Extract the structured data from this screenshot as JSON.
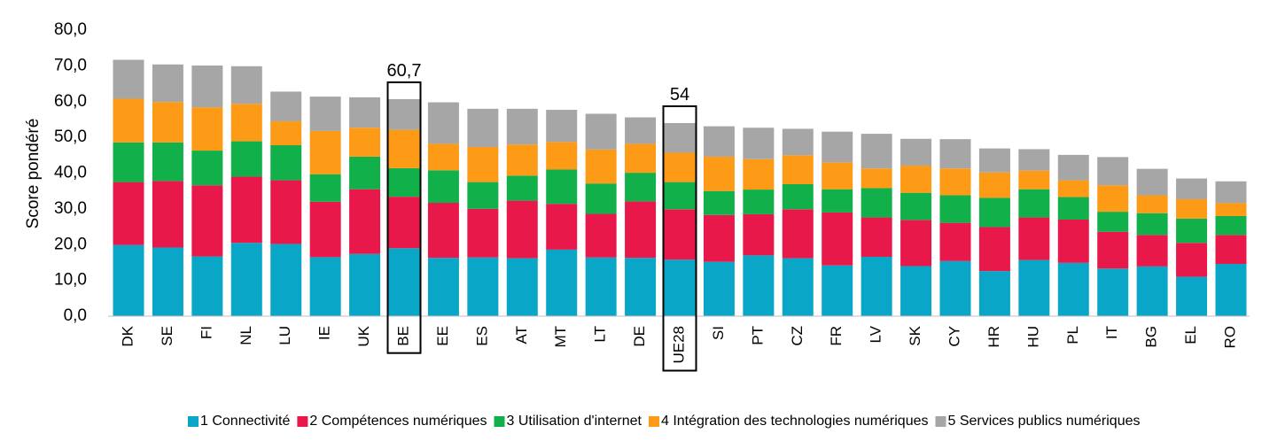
{
  "chart_data": {
    "type": "stacked_bar",
    "y_label": "Score pondéré",
    "categories": [
      "DK",
      "SE",
      "FI",
      "NL",
      "LU",
      "IE",
      "UK",
      "BE",
      "EE",
      "ES",
      "AT",
      "MT",
      "LT",
      "DE",
      "UE28",
      "SI",
      "PT",
      "CZ",
      "FR",
      "LV",
      "SK",
      "CY",
      "HR",
      "HU",
      "PL",
      "IT",
      "BG",
      "EL",
      "RO"
    ],
    "series": [
      {
        "name": "1 Connectivité",
        "color": "#0aa6c8",
        "values": [
          19.9,
          19.2,
          16.7,
          20.5,
          20.2,
          16.5,
          17.4,
          19.0,
          16.3,
          16.4,
          16.2,
          18.6,
          16.4,
          16.3,
          15.8,
          15.2,
          17.0,
          16.2,
          14.2,
          16.6,
          14.0,
          15.4,
          12.6,
          15.7,
          14.9,
          13.3,
          13.9,
          11.0,
          14.6
        ]
      },
      {
        "name": "2 Compétences numériques",
        "color": "#e8194a",
        "values": [
          17.6,
          18.6,
          19.9,
          18.5,
          17.8,
          15.5,
          18.1,
          14.4,
          15.4,
          13.6,
          16.1,
          12.8,
          12.2,
          15.8,
          14.1,
          13.1,
          11.5,
          13.7,
          14.8,
          11.0,
          12.9,
          10.7,
          12.3,
          11.9,
          12.1,
          10.3,
          8.8,
          9.5,
          8.1
        ]
      },
      {
        "name": "3 Utilisation d'internet",
        "color": "#12b04a",
        "values": [
          11.1,
          10.8,
          9.7,
          9.9,
          9.8,
          7.7,
          9.1,
          8.0,
          9.1,
          7.5,
          7.0,
          9.6,
          8.5,
          8.0,
          7.6,
          6.7,
          6.9,
          7.0,
          6.5,
          8.2,
          7.6,
          7.7,
          8.2,
          7.9,
          6.3,
          5.6,
          6.1,
          6.8,
          5.3
        ]
      },
      {
        "name": "4 Intégration des technologies numériques",
        "color": "#fd9a16",
        "values": [
          12.2,
          11.3,
          12.1,
          10.5,
          6.7,
          12.1,
          8.1,
          10.7,
          7.4,
          9.8,
          8.7,
          7.7,
          9.5,
          8.1,
          8.2,
          9.6,
          8.5,
          8.1,
          7.5,
          5.5,
          7.6,
          7.5,
          7.1,
          5.2,
          4.7,
          7.4,
          5.0,
          5.4,
          3.6
        ]
      },
      {
        "name": "5 Services publics numériques",
        "color": "#a6a6a6",
        "values": [
          10.9,
          10.5,
          11.7,
          10.5,
          8.3,
          9.6,
          8.5,
          8.6,
          11.6,
          10.7,
          10.0,
          9.0,
          10.0,
          7.4,
          8.3,
          8.5,
          8.8,
          7.4,
          8.6,
          9.7,
          7.5,
          8.2,
          6.7,
          6.0,
          7.1,
          7.9,
          7.4,
          5.8,
          6.1
        ]
      }
    ],
    "annotations": [
      {
        "text": "60,7",
        "category": "BE"
      },
      {
        "text": "54",
        "category": "UE28"
      }
    ],
    "ylim": [
      0,
      80
    ],
    "yticks": [
      {
        "value": 0,
        "label": "0,0"
      },
      {
        "value": 10,
        "label": "10,0"
      },
      {
        "value": 20,
        "label": "20,0"
      },
      {
        "value": 30,
        "label": "30,0"
      },
      {
        "value": 40,
        "label": "40,0"
      },
      {
        "value": 50,
        "label": "50,0"
      },
      {
        "value": 60,
        "label": "60,0"
      },
      {
        "value": 70,
        "label": "70,0"
      },
      {
        "value": 80,
        "label": "80,0"
      }
    ],
    "legend": "bottom"
  }
}
